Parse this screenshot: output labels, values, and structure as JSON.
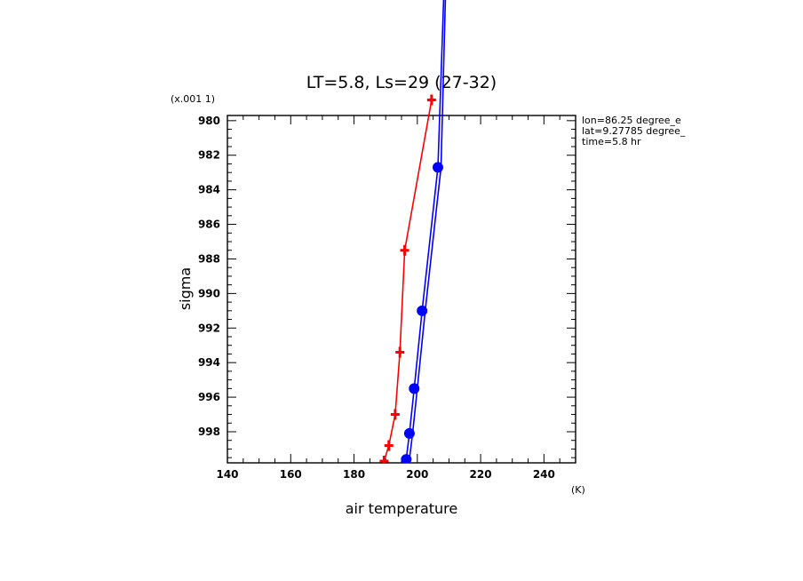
{
  "chart_data": {
    "type": "line",
    "title": "LT=5.8, Ls=29 (27-32)",
    "xlabel": "air temperature",
    "xunits": "(K)",
    "ylabel": "sigma",
    "yscale_label": "(x.001 1)",
    "xlim": [
      140,
      250
    ],
    "ylim": [
      979.7,
      999.8
    ],
    "y_inverted": true,
    "x_ticks": [
      140,
      160,
      180,
      200,
      220,
      240
    ],
    "y_ticks": [
      980,
      982,
      984,
      986,
      988,
      990,
      992,
      994,
      996,
      998
    ],
    "grid": false,
    "annotations": [
      "lon=86.25 degree_e",
      "lat=9.27785 degree_",
      "time=5.8 hr"
    ],
    "series": [
      {
        "color": "#ff0000",
        "marker": "cross",
        "points": [
          {
            "x": 189.5,
            "y": 999.7
          },
          {
            "x": 191.0,
            "y": 998.8
          },
          {
            "x": 193.0,
            "y": 997.0
          },
          {
            "x": 194.5,
            "y": 993.4
          },
          {
            "x": 196.0,
            "y": 987.5
          },
          {
            "x": 204.5,
            "y": 978.8
          }
        ]
      },
      {
        "color": "#0000ff",
        "marker": "circle",
        "points": [
          {
            "x": 196.5,
            "y": 999.6
          },
          {
            "x": 197.5,
            "y": 998.1
          },
          {
            "x": 199.0,
            "y": 995.5
          },
          {
            "x": 201.5,
            "y": 991.0
          },
          {
            "x": 206.5,
            "y": 982.7
          },
          {
            "x": 208.5,
            "y": 972.0
          }
        ]
      },
      {
        "color": "#0000ff",
        "marker": "none",
        "points": [
          {
            "x": 197.5,
            "y": 999.6
          },
          {
            "x": 198.5,
            "y": 998.1
          },
          {
            "x": 200.0,
            "y": 995.5
          },
          {
            "x": 202.5,
            "y": 991.0
          },
          {
            "x": 207.5,
            "y": 982.7
          },
          {
            "x": 209.0,
            "y": 972.0
          }
        ]
      }
    ]
  }
}
